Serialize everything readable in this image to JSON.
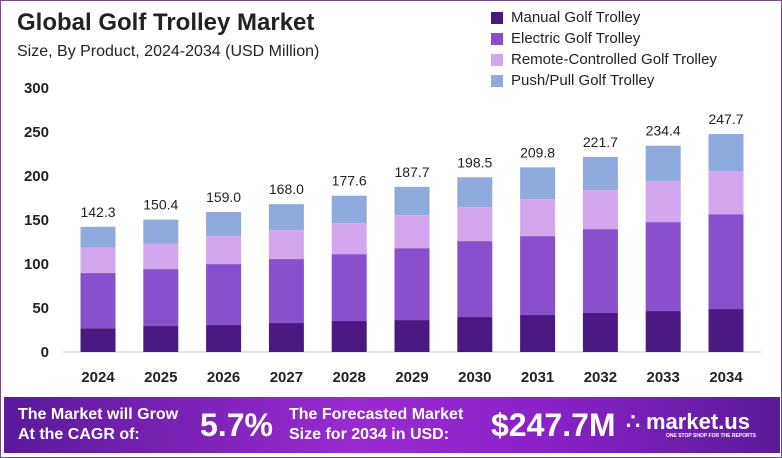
{
  "chart_data": {
    "type": "bar",
    "stacked": true,
    "title": "Global Golf Trolley Market",
    "subtitle": "Size, By Product, 2024-2034 (USD Million)",
    "categories": [
      "2024",
      "2025",
      "2026",
      "2027",
      "2028",
      "2029",
      "2030",
      "2031",
      "2032",
      "2033",
      "2034"
    ],
    "ylim": [
      0,
      300
    ],
    "yticks": [
      0,
      50,
      100,
      150,
      200,
      250,
      300
    ],
    "grid": false,
    "legend_position": "top-right",
    "series": [
      {
        "name": "Manual Golf Trolley",
        "color": "#4a1a82",
        "values": [
          27.0,
          29.5,
          30.6,
          32.9,
          35.2,
          36.3,
          39.7,
          42.0,
          44.3,
          46.5,
          48.8
        ]
      },
      {
        "name": "Electric Golf Trolley",
        "color": "#8a4fcc",
        "values": [
          62.7,
          64.7,
          69.3,
          72.7,
          76.0,
          81.7,
          86.3,
          89.7,
          95.3,
          101.1,
          107.8
        ]
      },
      {
        "name": "Remote-Controlled Golf Trolley",
        "color": "#d2a6ec",
        "values": [
          28.7,
          29.1,
          31.8,
          32.9,
          35.2,
          37.5,
          38.6,
          42.0,
          44.3,
          46.4,
          48.8
        ]
      },
      {
        "name": "Push/Pull Golf Trolley",
        "color": "#8faadc",
        "values": [
          23.9,
          27.1,
          27.3,
          29.5,
          31.2,
          32.2,
          33.9,
          36.1,
          37.8,
          40.4,
          42.3
        ]
      }
    ],
    "totals": [
      "142.3",
      "150.4",
      "159.0",
      "168.0",
      "177.6",
      "187.7",
      "198.5",
      "209.8",
      "221.7",
      "234.4",
      "247.7"
    ]
  },
  "banner": {
    "cagr_label_1": "The Market will Grow",
    "cagr_label_2": "At the CAGR of:",
    "cagr_value": "5.7%",
    "forecast_label_1": "The Forecasted Market",
    "forecast_label_2": "Size for 2034 in USD:",
    "forecast_value": "$247.7M",
    "logo_name": "market.us",
    "logo_tagline": "ONE STOP SHOP FOR THE REPORTS"
  }
}
